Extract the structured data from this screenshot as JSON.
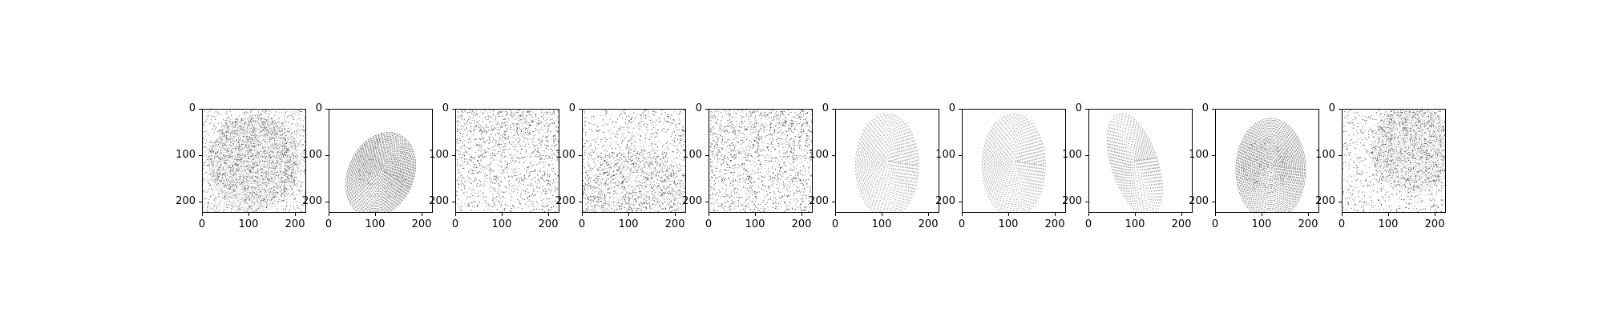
{
  "figure": {
    "panels": [
      {
        "style": "dark-noisy-blob"
      },
      {
        "style": "fingerprint-tilted"
      },
      {
        "style": "noise-dark-top"
      },
      {
        "style": "noise-dark-bottom"
      },
      {
        "style": "noise-uniform"
      },
      {
        "style": "fingerprint-light"
      },
      {
        "style": "fingerprint-light"
      },
      {
        "style": "fingerprint-narrow-tilted"
      },
      {
        "style": "fingerprint-dark-core"
      },
      {
        "style": "dark-noisy-blob-right"
      }
    ],
    "x_ticks": [
      "0",
      "100",
      "200"
    ],
    "y_ticks": [
      "0",
      "100",
      "200"
    ]
  },
  "colors": {
    "ink": "#000000",
    "background": "#ffffff"
  }
}
